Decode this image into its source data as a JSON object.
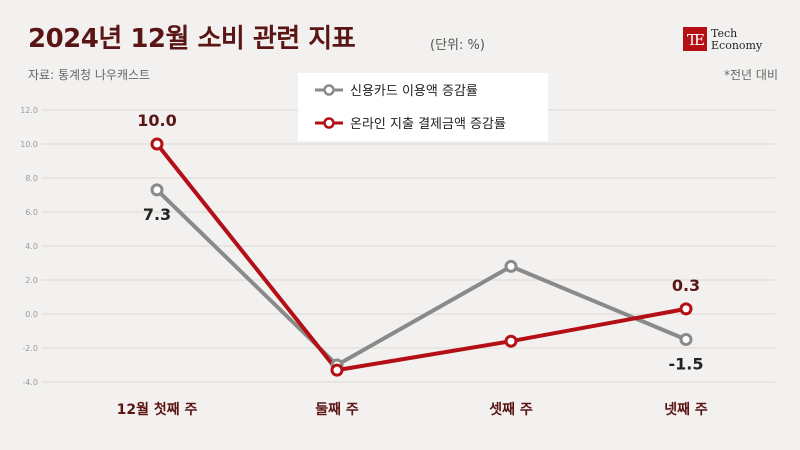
{
  "header": {
    "title": "2024년 12월 소비 관련 지표",
    "unit": "(단위: %)",
    "source": "자료: 통계청 나우캐스트",
    "note": "*전년 대비"
  },
  "logo": {
    "line1": "Tech",
    "line2": "Economy"
  },
  "colors": {
    "credit": "#8a8a8a",
    "online": "#b30f15",
    "title": "#5a1515"
  },
  "chart_data": {
    "type": "line",
    "categories": [
      "12월 첫째 주",
      "둘째 주",
      "셋째 주",
      "넷째 주"
    ],
    "series": [
      {
        "name": "신용카드 이용액 증감률",
        "color": "#8a8a8a",
        "values": [
          7.3,
          -3.0,
          2.8,
          -1.5
        ]
      },
      {
        "name": "온라인 지출 결제금액 증감률",
        "color": "#b30f15",
        "values": [
          10.0,
          -3.3,
          -1.6,
          0.3
        ]
      }
    ],
    "data_labels": [
      {
        "series": 1,
        "index": 0,
        "text": "10.0"
      },
      {
        "series": 0,
        "index": 0,
        "text": "7.3"
      },
      {
        "series": 1,
        "index": 3,
        "text": "0.3"
      },
      {
        "series": 0,
        "index": 3,
        "text": "-1.5"
      }
    ],
    "y_ticks": [
      "12.0",
      "10.0",
      "8.0",
      "6.0",
      "4.0",
      "2.0",
      "0.0",
      "-2.0",
      "-4.0"
    ],
    "ylim": [
      -4,
      12
    ],
    "grid": true,
    "legend": "top-center"
  }
}
